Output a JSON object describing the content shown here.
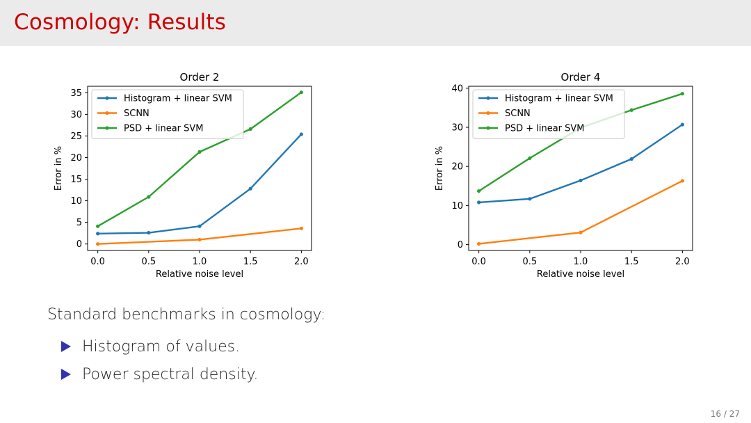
{
  "slide": {
    "title": "Cosmology: Results",
    "intro": "Standard benchmarks in cosmology:",
    "bullets": [
      "Histogram of values.",
      "Power spectral density."
    ],
    "page": "16 / 27"
  },
  "chart_data": [
    {
      "type": "line",
      "title": "Order 2",
      "xlabel": "Relative noise level",
      "ylabel": "Error in %",
      "x": [
        0.0,
        0.5,
        1.0,
        1.5,
        2.0
      ],
      "xlim": [
        -0.1,
        2.1
      ],
      "ylim": [
        -1.5,
        36.5
      ],
      "xticks": [
        0.0,
        0.5,
        1.0,
        1.5,
        2.0
      ],
      "xtick_labels": [
        "0.0",
        "0.5",
        "1.0",
        "1.5",
        "2.0"
      ],
      "yticks": [
        0,
        5,
        10,
        15,
        20,
        25,
        30,
        35
      ],
      "ytick_labels": [
        "0",
        "5",
        "10",
        "15",
        "20",
        "25",
        "30",
        "35"
      ],
      "legend_position": "top-left",
      "series": [
        {
          "name": "Histogram + linear SVM",
          "color": "#1f77b4",
          "values": [
            2.4,
            2.6,
            4.1,
            12.8,
            25.4
          ]
        },
        {
          "name": "SCNN",
          "color": "#ff7f0e",
          "values": [
            0.0,
            null,
            1.0,
            null,
            3.6
          ]
        },
        {
          "name": "PSD + linear SVM",
          "color": "#2ca02c",
          "values": [
            4.1,
            10.9,
            21.3,
            26.6,
            35.1
          ]
        }
      ]
    },
    {
      "type": "line",
      "title": "Order 4",
      "xlabel": "Relative noise level",
      "ylabel": "Error in %",
      "x": [
        0.0,
        0.5,
        1.0,
        1.5,
        2.0
      ],
      "xlim": [
        -0.1,
        2.1
      ],
      "ylim": [
        -1.5,
        40.5
      ],
      "xticks": [
        0.0,
        0.5,
        1.0,
        1.5,
        2.0
      ],
      "xtick_labels": [
        "0.0",
        "0.5",
        "1.0",
        "1.5",
        "2.0"
      ],
      "yticks": [
        0,
        10,
        20,
        30,
        40
      ],
      "ytick_labels": [
        "0",
        "10",
        "20",
        "30",
        "40"
      ],
      "legend_position": "top-left",
      "series": [
        {
          "name": "Histogram + linear SVM",
          "color": "#1f77b4",
          "values": [
            10.8,
            11.7,
            16.4,
            21.9,
            30.7
          ]
        },
        {
          "name": "SCNN",
          "color": "#ff7f0e",
          "values": [
            0.2,
            null,
            3.1,
            null,
            16.3
          ]
        },
        {
          "name": "PSD + linear SVM",
          "color": "#2ca02c",
          "values": [
            13.7,
            22.1,
            29.9,
            34.4,
            38.6
          ]
        }
      ]
    }
  ]
}
